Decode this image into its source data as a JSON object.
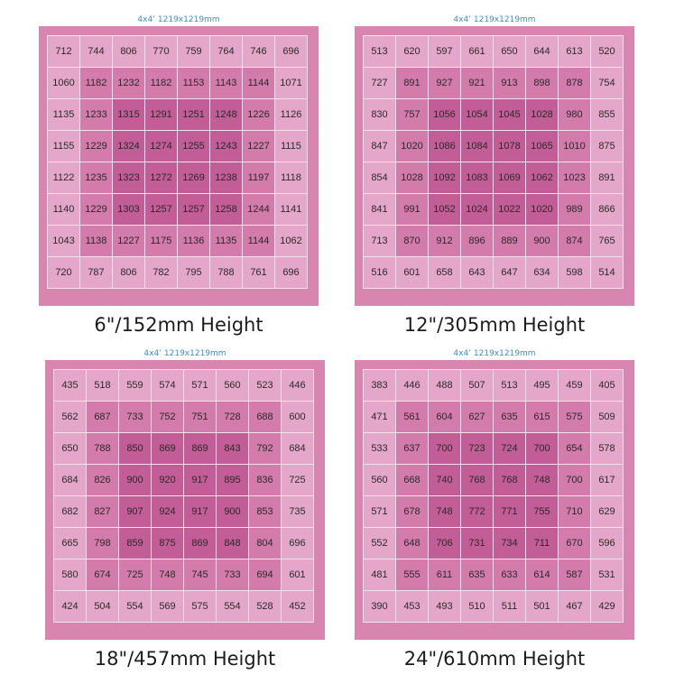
{
  "chart_data": [
    {
      "type": "heatmap",
      "dimension_label": "4x4’ 1219x1219mm",
      "title": "6\"/152mm Height",
      "values": [
        [
          712,
          744,
          806,
          770,
          759,
          764,
          746,
          696
        ],
        [
          1060,
          1182,
          1232,
          1182,
          1153,
          1143,
          1144,
          1071
        ],
        [
          1135,
          1233,
          1315,
          1291,
          1251,
          1248,
          1226,
          1126
        ],
        [
          1155,
          1229,
          1324,
          1274,
          1255,
          1243,
          1227,
          1115
        ],
        [
          1122,
          1235,
          1323,
          1272,
          1269,
          1238,
          1197,
          1118
        ],
        [
          1140,
          1229,
          1303,
          1257,
          1257,
          1258,
          1244,
          1141
        ],
        [
          1043,
          1138,
          1227,
          1175,
          1136,
          1135,
          1144,
          1062
        ],
        [
          720,
          787,
          806,
          782,
          795,
          788,
          761,
          696
        ]
      ]
    },
    {
      "type": "heatmap",
      "dimension_label": "4x4’ 1219x1219mm",
      "title": "12\"/305mm Height",
      "values": [
        [
          513,
          620,
          597,
          661,
          650,
          644,
          613,
          520
        ],
        [
          727,
          891,
          927,
          921,
          913,
          898,
          878,
          754
        ],
        [
          830,
          757,
          1056,
          1054,
          1045,
          1028,
          980,
          855
        ],
        [
          847,
          1020,
          1086,
          1084,
          1078,
          1065,
          1010,
          875
        ],
        [
          854,
          1028,
          1092,
          1083,
          1069,
          1062,
          1023,
          891
        ],
        [
          841,
          991,
          1052,
          1024,
          1022,
          1020,
          989,
          866
        ],
        [
          713,
          870,
          912,
          896,
          889,
          900,
          874,
          765
        ],
        [
          516,
          601,
          658,
          643,
          647,
          634,
          598,
          514
        ]
      ]
    },
    {
      "type": "heatmap",
      "dimension_label": "4x4’ 1219x1219mm",
      "title": "18\"/457mm Height",
      "values": [
        [
          435,
          518,
          559,
          574,
          571,
          560,
          523,
          446
        ],
        [
          562,
          687,
          733,
          752,
          751,
          728,
          688,
          600
        ],
        [
          650,
          788,
          850,
          869,
          869,
          843,
          792,
          684
        ],
        [
          684,
          826,
          900,
          920,
          917,
          895,
          836,
          725
        ],
        [
          682,
          827,
          907,
          924,
          917,
          900,
          853,
          735
        ],
        [
          665,
          798,
          859,
          875,
          869,
          848,
          804,
          696
        ],
        [
          580,
          674,
          725,
          748,
          745,
          733,
          694,
          601
        ],
        [
          424,
          504,
          554,
          569,
          575,
          554,
          528,
          452
        ]
      ]
    },
    {
      "type": "heatmap",
      "dimension_label": "4x4’ 1219x1219mm",
      "title": "24\"/610mm Height",
      "values": [
        [
          383,
          446,
          488,
          507,
          513,
          495,
          459,
          405
        ],
        [
          471,
          561,
          604,
          627,
          635,
          615,
          575,
          509
        ],
        [
          533,
          637,
          700,
          723,
          724,
          700,
          654,
          578
        ],
        [
          560,
          668,
          740,
          768,
          768,
          748,
          700,
          617
        ],
        [
          571,
          678,
          748,
          772,
          771,
          755,
          710,
          629
        ],
        [
          552,
          648,
          706,
          731,
          734,
          711,
          670,
          596
        ],
        [
          481,
          555,
          611,
          635,
          633,
          614,
          587,
          531
        ],
        [
          390,
          453,
          493,
          510,
          511,
          501,
          467,
          429
        ]
      ]
    }
  ],
  "colors": {
    "board": "#d885b0",
    "cell_outer": "#e5a7c9",
    "cell_mid": "#d37bab",
    "cell_inner": "#c35d97",
    "grid_line": "#f3e2ec",
    "dimension_text": "#3a8fd0"
  }
}
